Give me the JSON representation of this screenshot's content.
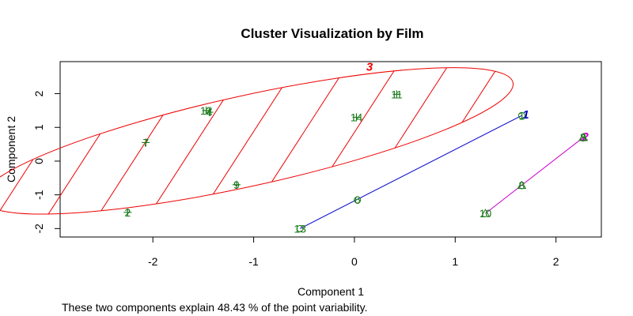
{
  "chart_data": {
    "type": "scatter",
    "title": "Cluster Visualization by Film",
    "xlabel": "Component 1",
    "ylabel": "Component 2",
    "xlim": [
      -2.92,
      2.45
    ],
    "ylim": [
      -2.25,
      2.95
    ],
    "x_ticks": [
      -2,
      -1,
      0,
      1,
      2
    ],
    "y_ticks": [
      -2,
      -1,
      0,
      1,
      2
    ],
    "x_tick_labels": [
      "-2",
      "-1",
      "0",
      "1",
      "2"
    ],
    "y_tick_labels": [
      "-2",
      "-1",
      "0",
      "1",
      "2"
    ],
    "footnote": "These two components explain 48.43 % of the point variability.",
    "point_color": "#1a7a1a",
    "points": [
      {
        "id": "1",
        "x": 1.66,
        "y": 1.35,
        "cluster": 1
      },
      {
        "id": "2",
        "x": -2.25,
        "y": -1.52,
        "cluster": 3
      },
      {
        "id": "3",
        "x": 2.27,
        "y": 0.7,
        "cluster": 2
      },
      {
        "id": "4",
        "x": -1.44,
        "y": 1.45,
        "cluster": 3
      },
      {
        "id": "5",
        "x": 2.27,
        "y": 0.7,
        "cluster": 2
      },
      {
        "id": "6",
        "x": 0.03,
        "y": -1.15,
        "cluster": 1
      },
      {
        "id": "7",
        "x": -2.07,
        "y": 0.55,
        "cluster": 3
      },
      {
        "id": "8",
        "x": 1.66,
        "y": -0.72,
        "cluster": 2
      },
      {
        "id": "9",
        "x": -1.17,
        "y": -0.7,
        "cluster": 3
      },
      {
        "id": "10",
        "x": 1.3,
        "y": -1.55,
        "cluster": 2
      },
      {
        "id": "11",
        "x": 0.42,
        "y": 1.98,
        "cluster": 3
      },
      {
        "id": "12",
        "x": -1.47,
        "y": 1.5,
        "cluster": 3
      },
      {
        "id": "13",
        "x": -0.54,
        "y": -2.0,
        "cluster": 1
      },
      {
        "id": "14",
        "x": 0.02,
        "y": 1.3,
        "cluster": 3
      }
    ],
    "clusters": [
      {
        "id": "1",
        "color": "#0000cc",
        "shape": "line",
        "p1": [
          -0.54,
          -2.0
        ],
        "p2": [
          1.66,
          1.35
        ],
        "label_at": [
          1.7,
          1.38
        ]
      },
      {
        "id": "2",
        "color": "#cc00cc",
        "shape": "line",
        "p1": [
          1.3,
          -1.55
        ],
        "p2": [
          2.27,
          0.7
        ],
        "label_at": [
          2.29,
          0.72
        ]
      },
      {
        "id": "3",
        "color": "#ee0000",
        "shape": "ellipse",
        "center": [
          -1.06,
          0.6
        ],
        "a": 3.15,
        "b": 0.73,
        "angle_deg": 33.3,
        "label_at": [
          0.15,
          2.8
        ]
      }
    ]
  }
}
